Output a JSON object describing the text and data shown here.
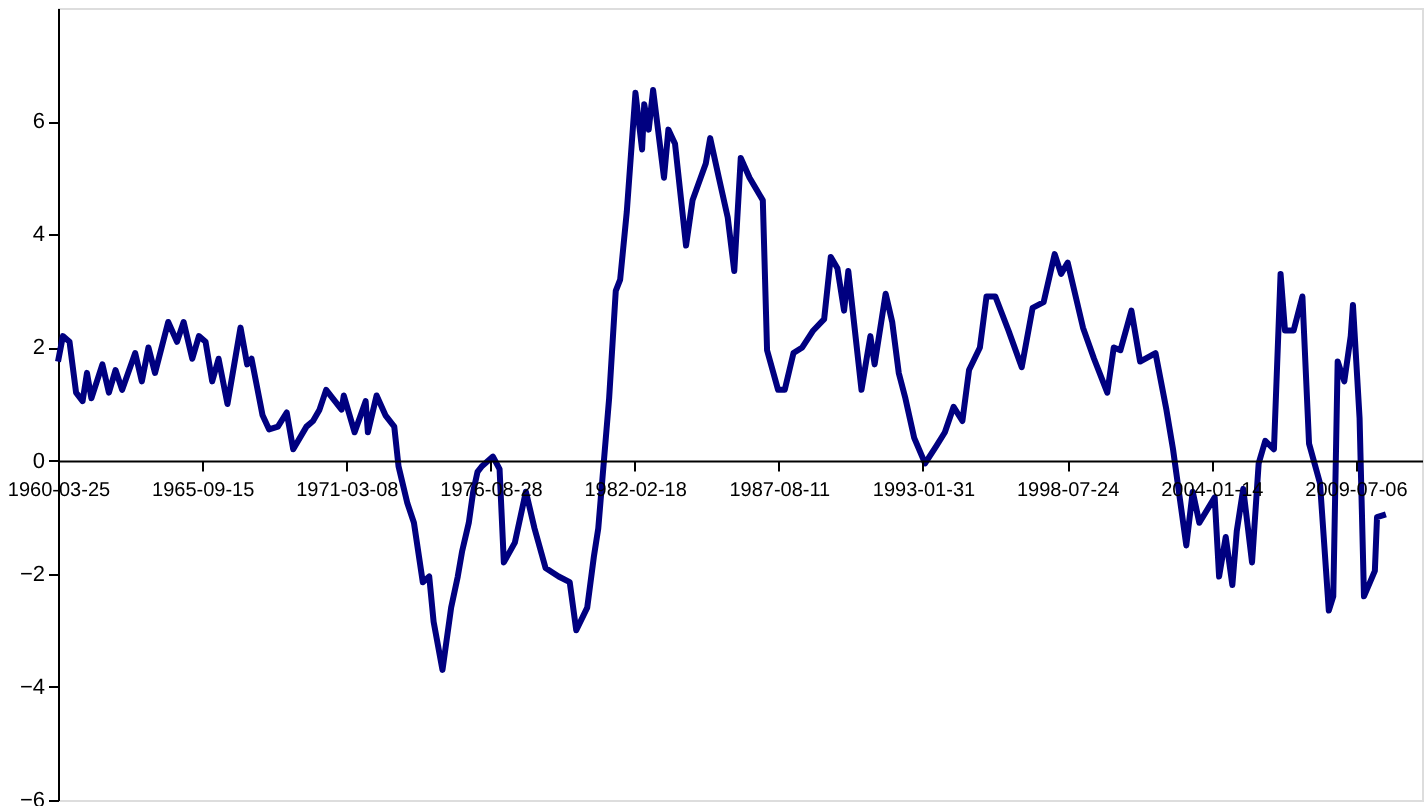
{
  "chart_data": {
    "type": "line",
    "x": [
      "1960-03-25",
      "1960-06",
      "1960-09",
      "1960-12",
      "1961-03",
      "1961-05",
      "1961-07",
      "1961-12",
      "1962-03",
      "1962-06",
      "1962-09",
      "1963-03",
      "1963-06",
      "1963-09",
      "1963-12",
      "1964-06",
      "1964-10",
      "1965-01",
      "1965-05",
      "1965-08",
      "1965-11",
      "1966-02",
      "1966-05",
      "1966-09",
      "1967-03",
      "1967-06",
      "1967-08",
      "1968-01",
      "1968-04",
      "1968-08",
      "1968-12",
      "1969-03",
      "1969-09",
      "1969-12",
      "1970-03",
      "1970-06",
      "1970-10",
      "1971-01",
      "1971-02",
      "1971-07",
      "1971-12",
      "1972-01",
      "1972-05",
      "1972-09",
      "1973-01",
      "1973-03",
      "1973-07",
      "1973-10",
      "1974-02",
      "1974-05",
      "1974-07",
      "1974-11",
      "1975-03",
      "1975-06",
      "1975-08",
      "1975-11",
      "1976-01",
      "1976-03",
      "1976-05",
      "1976-10",
      "1977-01",
      "1977-03",
      "1977-08",
      "1978-01",
      "1978-05",
      "1978-10",
      "1979-04",
      "1979-09",
      "1979-12",
      "1980-05",
      "1980-08",
      "1980-10",
      "1981-03",
      "1981-06",
      "1981-08",
      "1981-11",
      "1982-03",
      "1982-06",
      "1982-07",
      "1982-09",
      "1982-11",
      "1983-04",
      "1983-06",
      "1983-09",
      "1984-02",
      "1984-05",
      "1984-11",
      "1985-01",
      "1985-05",
      "1985-09",
      "1985-12",
      "1986-03",
      "1986-07",
      "1986-10",
      "1987-01",
      "1987-03",
      "1987-08",
      "1987-11",
      "1988-03",
      "1988-07",
      "1988-12",
      "1989-05",
      "1989-08",
      "1989-11",
      "1990-02",
      "1990-04",
      "1990-10",
      "1991-02",
      "1991-04",
      "1991-09",
      "1991-12",
      "1992-03",
      "1992-06",
      "1992-10",
      "1993-03",
      "1993-08",
      "1993-12",
      "1994-04",
      "1994-08",
      "1994-11",
      "1995-04",
      "1995-07",
      "1995-11",
      "1996-05",
      "1996-11",
      "1997-04",
      "1997-09",
      "1998-02",
      "1998-05",
      "1998-08",
      "1999-03",
      "1999-08",
      "2000-02",
      "2000-05",
      "2000-08",
      "2001-01",
      "2001-05",
      "2001-12",
      "2002-05",
      "2002-08",
      "2003-02",
      "2003-05",
      "2003-08",
      "2004-03",
      "2004-05",
      "2004-08",
      "2004-11",
      "2005-01",
      "2005-04",
      "2005-08",
      "2005-11",
      "2006-02",
      "2006-06",
      "2006-09",
      "2006-11",
      "2007-03",
      "2007-07",
      "2007-10",
      "2008-03",
      "2008-07",
      "2008-09",
      "2008-11",
      "2009-02",
      "2009-05",
      "2009-06",
      "2009-09",
      "2009-11",
      "2010-04",
      "2010-05",
      "2010-09"
    ],
    "series": [
      {
        "color": "#000080",
        "values": [
          1.75,
          2.2,
          2.1,
          1.2,
          1.05,
          1.55,
          1.1,
          1.7,
          1.2,
          1.6,
          1.25,
          1.9,
          1.4,
          2.0,
          1.55,
          2.45,
          2.1,
          2.45,
          1.8,
          2.2,
          2.1,
          1.4,
          1.8,
          1.0,
          2.35,
          1.7,
          1.8,
          0.8,
          0.55,
          0.6,
          0.85,
          0.2,
          0.6,
          0.7,
          0.9,
          1.25,
          1.05,
          0.9,
          1.15,
          0.5,
          1.05,
          0.5,
          1.15,
          0.8,
          0.6,
          -0.1,
          -0.75,
          -1.1,
          -2.15,
          -2.05,
          -2.85,
          -3.7,
          -2.6,
          -2.05,
          -1.6,
          -1.1,
          -0.55,
          -0.2,
          -0.1,
          0.07,
          -0.15,
          -1.8,
          -1.45,
          -0.55,
          -1.2,
          -1.9,
          -2.05,
          -2.15,
          -3.0,
          -2.6,
          -1.7,
          -1.2,
          1.1,
          3.0,
          3.2,
          4.4,
          6.5,
          5.5,
          6.3,
          5.85,
          6.55,
          5.0,
          5.85,
          5.6,
          3.8,
          4.6,
          5.25,
          5.7,
          5.0,
          4.3,
          3.35,
          5.35,
          5.0,
          4.8,
          4.6,
          1.95,
          1.25,
          1.25,
          1.9,
          2.0,
          2.3,
          2.5,
          3.6,
          3.4,
          2.65,
          3.35,
          1.25,
          2.2,
          1.7,
          2.95,
          2.45,
          1.55,
          1.1,
          0.4,
          -0.05,
          0.25,
          0.5,
          0.95,
          0.7,
          1.6,
          2.0,
          2.9,
          2.9,
          2.3,
          1.65,
          2.7,
          2.8,
          3.65,
          3.3,
          3.5,
          2.35,
          1.8,
          1.2,
          2.0,
          1.95,
          2.65,
          1.75,
          1.9,
          0.9,
          0.2,
          -1.5,
          -0.55,
          -1.1,
          -0.65,
          -2.05,
          -1.35,
          -2.2,
          -1.25,
          -0.5,
          -1.8,
          -0.05,
          0.35,
          0.2,
          3.3,
          2.3,
          2.3,
          2.9,
          0.3,
          -0.4,
          -2.65,
          -2.4,
          1.75,
          1.4,
          2.2,
          2.75,
          0.75,
          -2.4,
          -1.95,
          -1.0,
          -0.95
        ]
      }
    ],
    "xlim": [
      "1960-03-25",
      "2012-01-15"
    ],
    "xticks": [
      "1960-03-25",
      "1965-09-15",
      "1971-03-08",
      "1976-08-28",
      "1982-02-18",
      "1987-08-11",
      "1993-01-31",
      "1998-07-24",
      "2004-01-14",
      "2009-07-06"
    ],
    "ylim": [
      -6,
      8
    ],
    "yticks": [
      -6,
      -4,
      -2,
      0,
      2,
      4,
      6
    ],
    "grid": false,
    "marker": "none",
    "line_style": "solid"
  }
}
